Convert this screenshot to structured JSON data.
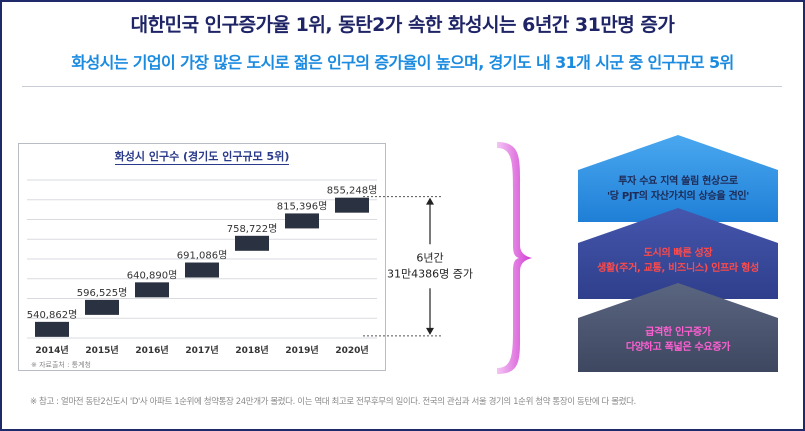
{
  "header": {
    "title": "대한민국 인구증가율 1위, 동탄2가 속한 화성시는 6년간 31만명 증가",
    "subtitle": "화성시는 기업이 가장 많은 도시로 젊은 인구의 증가율이 높으며, 경기도 내 31개 시군 중 인구규모 5위"
  },
  "chart_data": {
    "type": "bar",
    "title": "화성시 인구수 (경기도 인구규모 5위)",
    "categories": [
      "2014년",
      "2015년",
      "2016년",
      "2017년",
      "2018년",
      "2019년",
      "2020년"
    ],
    "values": [
      540862,
      596525,
      640890,
      691086,
      758722,
      815396,
      855248
    ],
    "value_labels": [
      "540,862명",
      "596,525명",
      "640,890명",
      "691,086명",
      "758,722명",
      "815,396명",
      "855,248명"
    ],
    "ylim": [
      500000,
      900000
    ],
    "grid": true,
    "annotation": {
      "line1": "6년간",
      "line2": "31만4386명 증가"
    },
    "bar_color": "#2a3140"
  },
  "source_text": "※ 자료출처 : 통계청",
  "pyramid": {
    "top": {
      "line1": "투자 수요 지역 쏠림 현상으로",
      "line2": "'당 PJT의 자산가치의 상승을 견인'",
      "color": "#2f92e2"
    },
    "middle": {
      "line1": "도시의 빠른 성장",
      "line2": "생활(주거, 교통, 비즈니스) 인프라 형성",
      "color": "#3b4c9e"
    },
    "bottom": {
      "line1": "급격한 인구증가",
      "line2": "다양하고 폭넓은 수요증가",
      "color": "#4a5570"
    }
  },
  "footnote": "※ 참고 : 얼마전 동탄2신도시 'D'사 아파트 1순위에 청약통장 24만개가 몰렸다. 이는 역대 최고로 전무후무의 일이다. 전국의 관심과 서울 경기의 1순위 청약 통장이 동탄에 다 몰렸다."
}
